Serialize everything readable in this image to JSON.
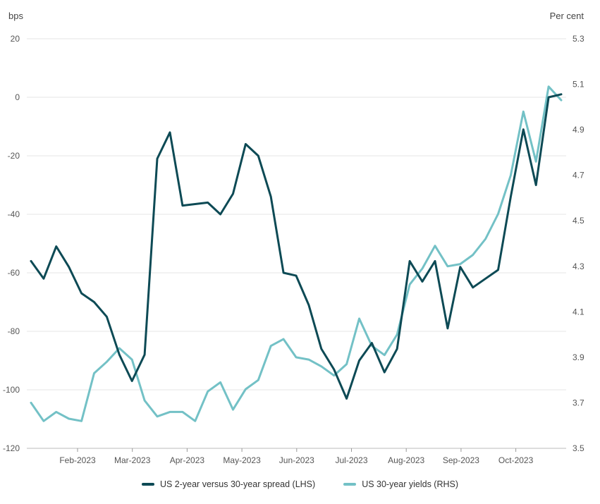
{
  "chart_data": {
    "type": "line",
    "left_axis": {
      "unit": "bps",
      "ylim": [
        -120,
        20
      ],
      "ticks": [
        "20",
        "0",
        "-20",
        "-40",
        "-60",
        "-80",
        "-100",
        "-120"
      ]
    },
    "right_axis": {
      "unit": "Per cent",
      "ylim": [
        3.5,
        5.3
      ],
      "ticks": [
        "5.3",
        "5.1",
        "4.9",
        "4.7",
        "4.5",
        "4.3",
        "4.1",
        "3.9",
        "3.7",
        "3.5"
      ]
    },
    "x_labels": [
      "Feb-2023",
      "Mar-2023",
      "Apr-2023",
      "May-2023",
      "Jun-2023",
      "Jul-2023",
      "Aug-2023",
      "Sep-2023",
      "Oct-2023"
    ],
    "grid": "horizontal",
    "legend_position": "bottom",
    "series": [
      {
        "name": "US 2-year versus 30-year spread (LHS)",
        "axis": "left",
        "color": "#0d4a55",
        "values": [
          -56,
          -62,
          -51,
          -58,
          -67,
          -70,
          -75,
          -88,
          -97,
          -88,
          -21,
          -12,
          -37,
          -36.5,
          -36,
          -40,
          -33,
          -16,
          -20,
          -34,
          -60,
          -61,
          -71,
          -86,
          -93,
          -103,
          -90,
          -84,
          -94,
          -86,
          -56,
          -63,
          -56,
          -79,
          -58,
          -65,
          -62,
          -59,
          -34,
          -11,
          -30,
          0,
          1
        ]
      },
      {
        "name": "US 30-year yields (RHS)",
        "axis": "right",
        "color": "#73c1c6",
        "values": [
          3.7,
          3.62,
          3.66,
          3.63,
          3.62,
          3.83,
          3.88,
          3.94,
          3.89,
          3.71,
          3.64,
          3.66,
          3.66,
          3.62,
          3.75,
          3.79,
          3.67,
          3.76,
          3.8,
          3.95,
          3.98,
          3.9,
          3.89,
          3.86,
          3.82,
          3.87,
          4.07,
          3.95,
          3.91,
          4.0,
          4.22,
          4.29,
          4.39,
          4.3,
          4.31,
          4.35,
          4.42,
          4.53,
          4.7,
          4.98,
          4.76,
          5.09,
          5.03
        ]
      }
    ]
  }
}
